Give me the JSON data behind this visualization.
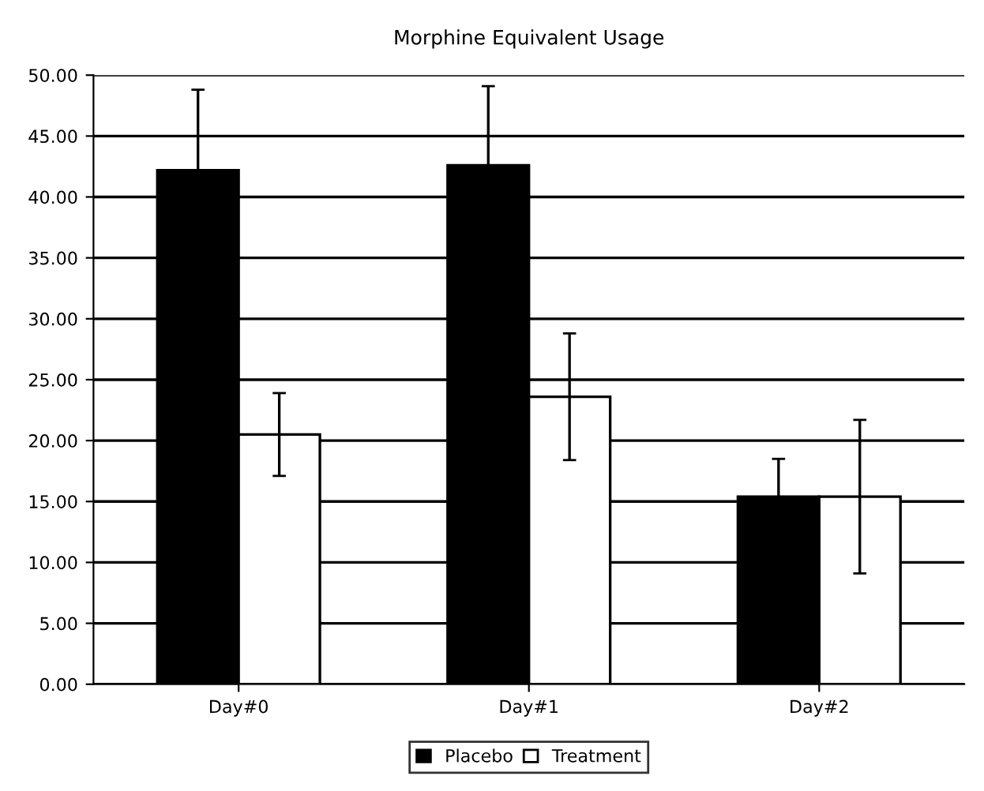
{
  "chart_data": {
    "type": "bar",
    "title": "Morphine Equivalent Usage",
    "categories": [
      "Day#0",
      "Day#1",
      "Day#2"
    ],
    "series": [
      {
        "name": "Placebo",
        "color": "#000000",
        "values": [
          42.2,
          42.6,
          15.4
        ],
        "errors": [
          6.6,
          6.5,
          3.1
        ]
      },
      {
        "name": "Treatment",
        "color": "#ffffff",
        "values": [
          20.5,
          23.6,
          15.4
        ],
        "errors": [
          3.4,
          5.2,
          6.3
        ]
      }
    ],
    "ylim": [
      0,
      50
    ],
    "yticks": [
      {
        "value": 0,
        "label": "0.00"
      },
      {
        "value": 5,
        "label": "5.00"
      },
      {
        "value": 10,
        "label": "10.00"
      },
      {
        "value": 15,
        "label": "15.00"
      },
      {
        "value": 20,
        "label": "20.00"
      },
      {
        "value": 25,
        "label": "25.00"
      },
      {
        "value": 30,
        "label": "30.00"
      },
      {
        "value": 35,
        "label": "35.00"
      },
      {
        "value": 40,
        "label": "40.00"
      },
      {
        "value": 45,
        "label": "45.00"
      },
      {
        "value": 50,
        "label": "50.00"
      }
    ],
    "grid": "y",
    "legend": "bottom"
  }
}
